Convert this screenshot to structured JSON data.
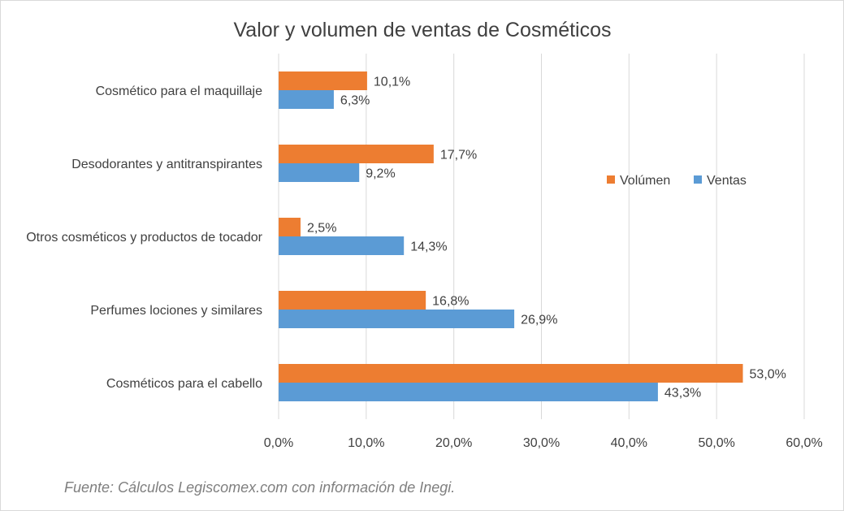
{
  "chart_data": {
    "type": "bar",
    "orientation": "horizontal",
    "title": "Valor y volumen de ventas de Cosméticos",
    "categories": [
      "Cosmético para el maquillaje",
      "Desodorantes y antitranspirantes",
      "Otros cosméticos y productos de tocador",
      "Perfumes lociones y similares",
      "Cosméticos para el cabello"
    ],
    "series": [
      {
        "name": "Volúmen",
        "color": "#ed7d31",
        "values": [
          10.1,
          17.7,
          2.5,
          16.8,
          53.0
        ],
        "labels": [
          "10,1%",
          "17,7%",
          "2,5%",
          "16,8%",
          "53,0%"
        ]
      },
      {
        "name": "Ventas",
        "color": "#5b9bd5",
        "values": [
          6.3,
          9.2,
          14.3,
          26.9,
          43.3
        ],
        "labels": [
          "6,3%",
          "9,2%",
          "14,3%",
          "26,9%",
          "43,3%"
        ]
      }
    ],
    "xlim": [
      0,
      60
    ],
    "ticks": [
      0,
      10,
      20,
      30,
      40,
      50,
      60
    ],
    "tick_labels": [
      "0,0%",
      "10,0%",
      "20,0%",
      "30,0%",
      "40,0%",
      "50,0%",
      "60,0%"
    ],
    "grid": true,
    "legend_position": "right"
  },
  "source_note": "Fuente: Cálculos Legiscomex.com con información de Inegi."
}
